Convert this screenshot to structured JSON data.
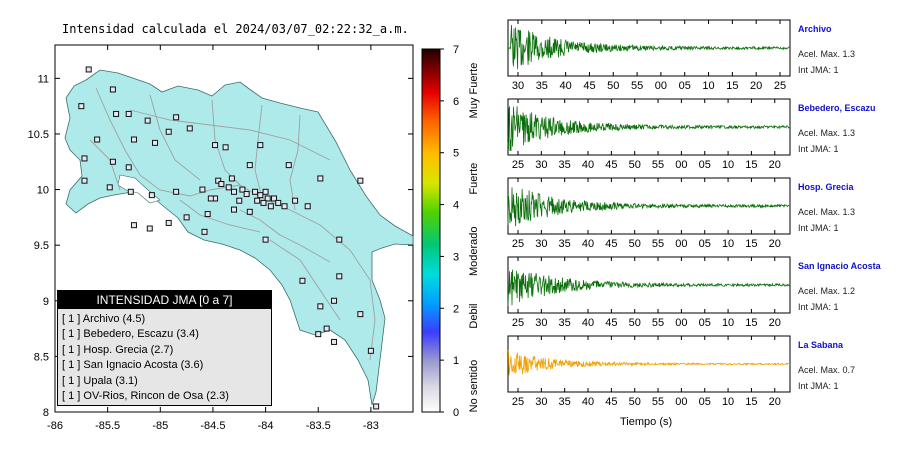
{
  "map": {
    "title": "Intensidad calculada el 2024/03/07_02:22:32_a.m.",
    "lon_ticks": [
      "-86",
      "-85.5",
      "-85",
      "-84.5",
      "-84",
      "-83.5",
      "-83"
    ],
    "lat_ticks": [
      "11",
      "10.5",
      "10",
      "9.5",
      "9",
      "8.5",
      "8"
    ],
    "xlim": [
      -86,
      -82.6
    ],
    "ylim": [
      8,
      11.3
    ],
    "stations": [
      [
        -85.68,
        11.08
      ],
      [
        -85.45,
        10.9
      ],
      [
        -85.75,
        10.75
      ],
      [
        -85.42,
        10.68
      ],
      [
        -85.3,
        10.68
      ],
      [
        -85.12,
        10.62
      ],
      [
        -84.92,
        10.52
      ],
      [
        -84.85,
        10.65
      ],
      [
        -84.72,
        10.55
      ],
      [
        -85.6,
        10.45
      ],
      [
        -85.25,
        10.45
      ],
      [
        -85.05,
        10.42
      ],
      [
        -84.48,
        10.4
      ],
      [
        -84.38,
        10.38
      ],
      [
        -84.05,
        10.4
      ],
      [
        -85.72,
        10.28
      ],
      [
        -85.45,
        10.25
      ],
      [
        -85.3,
        10.2
      ],
      [
        -84.32,
        10.1
      ],
      [
        -84.15,
        10.22
      ],
      [
        -83.78,
        10.22
      ],
      [
        -83.48,
        10.1
      ],
      [
        -83.1,
        10.08
      ],
      [
        -85.72,
        10.08
      ],
      [
        -85.48,
        10.02
      ],
      [
        -85.28,
        9.98
      ],
      [
        -85.08,
        9.95
      ],
      [
        -84.85,
        9.98
      ],
      [
        -84.6,
        10.0
      ],
      [
        -84.45,
        10.08
      ],
      [
        -84.42,
        10.05
      ],
      [
        -84.35,
        10.02
      ],
      [
        -84.3,
        9.98
      ],
      [
        -84.22,
        10.0
      ],
      [
        -84.18,
        9.96
      ],
      [
        -84.1,
        9.98
      ],
      [
        -84.05,
        9.95
      ],
      [
        -84.0,
        9.98
      ],
      [
        -83.98,
        9.92
      ],
      [
        -84.08,
        9.9
      ],
      [
        -84.02,
        9.88
      ],
      [
        -83.92,
        9.92
      ],
      [
        -83.88,
        9.88
      ],
      [
        -83.95,
        9.85
      ],
      [
        -83.82,
        9.85
      ],
      [
        -84.25,
        9.9
      ],
      [
        -84.48,
        9.92
      ],
      [
        -84.52,
        9.92
      ],
      [
        -84.3,
        9.82
      ],
      [
        -83.72,
        9.9
      ],
      [
        -83.6,
        9.85
      ],
      [
        -84.15,
        9.8
      ],
      [
        -84.55,
        9.78
      ],
      [
        -84.75,
        9.75
      ],
      [
        -84.92,
        9.7
      ],
      [
        -85.1,
        9.65
      ],
      [
        -85.25,
        9.68
      ],
      [
        -84.58,
        9.62
      ],
      [
        -84.0,
        9.55
      ],
      [
        -83.3,
        9.55
      ],
      [
        -83.3,
        9.22
      ],
      [
        -83.65,
        9.18
      ],
      [
        -83.35,
        9.0
      ],
      [
        -83.48,
        8.95
      ],
      [
        -83.1,
        8.88
      ],
      [
        -83.42,
        8.75
      ],
      [
        -83.5,
        8.7
      ],
      [
        -83.35,
        8.63
      ],
      [
        -83.0,
        8.55
      ],
      [
        -82.95,
        8.05
      ]
    ]
  },
  "colorbar": {
    "ticks": [
      "0",
      "1",
      "2",
      "3",
      "4",
      "5",
      "6",
      "7"
    ],
    "labels": [
      "No sentido",
      "Debil",
      "Moderado",
      "Fuerte",
      "Muy Fuerte"
    ]
  },
  "legend": {
    "title": "INTENSIDAD JMA [0 a 7]",
    "items": [
      "[ 1 ]  Archivo (4.5)",
      "[ 1 ]  Bebedero, Escazu (3.4)",
      "[ 1 ]  Hosp. Grecia (2.7)",
      "[ 1 ]  San Ignacio Acosta (3.6)",
      "[ 1 ]  Upala (3.1)",
      "[ 1 ]  OV-Rios, Rincon de Osa (2.3)"
    ]
  },
  "chart_data": [
    {
      "type": "scatter",
      "title": "Intensidad calculada el 2024/03/07_02:22:32_a.m.",
      "xlim": [
        -86,
        -82.6
      ],
      "ylim": [
        8,
        11.3
      ],
      "series_ref": "map.stations"
    },
    {
      "type": "line",
      "name": "Archivo",
      "x_ticks": [
        "30",
        "35",
        "40",
        "45",
        "50",
        "55",
        "00",
        "05",
        "10",
        "15",
        "20",
        "25"
      ],
      "accel_label": "Acel. Max. 1.3",
      "int_label": "Int JMA: 1",
      "color": "#0a6e0a",
      "peak_amplitude": 1.3
    },
    {
      "type": "line",
      "name": "Bebedero, Escazu",
      "x_ticks": [
        "25",
        "30",
        "35",
        "40",
        "45",
        "50",
        "55",
        "00",
        "05",
        "10",
        "15",
        "20"
      ],
      "accel_label": "Acel. Max. 1.3",
      "int_label": "Int JMA: 1",
      "color": "#0a6e0a",
      "peak_amplitude": 1.3
    },
    {
      "type": "line",
      "name": "Hosp. Grecia",
      "x_ticks": [
        "25",
        "30",
        "35",
        "40",
        "45",
        "50",
        "55",
        "00",
        "05",
        "10",
        "15",
        "20"
      ],
      "accel_label": "Acel. Max. 1.3",
      "int_label": "Int JMA: 1",
      "color": "#0a6e0a",
      "peak_amplitude": 1.3
    },
    {
      "type": "line",
      "name": "San Ignacio Acosta",
      "x_ticks": [
        "25",
        "30",
        "35",
        "40",
        "45",
        "50",
        "55",
        "00",
        "05",
        "10",
        "15",
        "20"
      ],
      "accel_label": "Acel. Max. 1.2",
      "int_label": "Int JMA: 1",
      "color": "#0a6e0a",
      "peak_amplitude": 1.2
    },
    {
      "type": "line",
      "name": "La Sabana",
      "x_ticks": [
        "25",
        "30",
        "35",
        "40",
        "45",
        "50",
        "55",
        "00",
        "05",
        "10",
        "15",
        "20"
      ],
      "accel_label": "Acel. Max. 0.7",
      "int_label": "Int JMA: 1",
      "color": "#f0a000",
      "peak_amplitude": 0.7
    }
  ],
  "waveforms_xlabel": "Tiempo (s)"
}
